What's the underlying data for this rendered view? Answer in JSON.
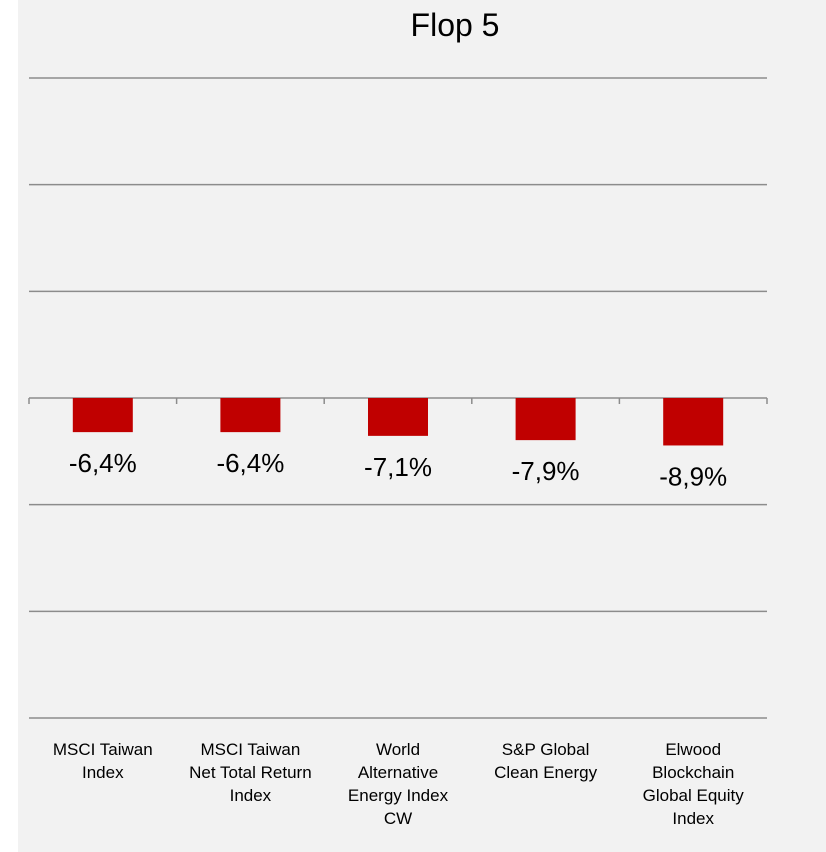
{
  "chart_data": {
    "type": "bar",
    "title": "Flop 5",
    "categories": [
      [
        "MSCI Taiwan",
        "Index"
      ],
      [
        "MSCI Taiwan",
        "Net Total Return",
        "Index"
      ],
      [
        "World",
        "Alternative",
        "Energy Index",
        "CW"
      ],
      [
        "S&P Global",
        "Clean Energy"
      ],
      [
        "Elwood",
        "Blockchain",
        "Global Equity",
        "Index"
      ]
    ],
    "values": [
      -6.4,
      -6.4,
      -7.1,
      -7.9,
      -8.9
    ],
    "data_labels": [
      "-6,4%",
      "-6,4%",
      "-7,1%",
      "-7,9%",
      "-8,9%"
    ],
    "ylim": [
      -60,
      60
    ],
    "gridlines": true,
    "bar_color": "#c00000",
    "grid_color": "#8c8c8c",
    "background_color": "#f2f2f2"
  }
}
